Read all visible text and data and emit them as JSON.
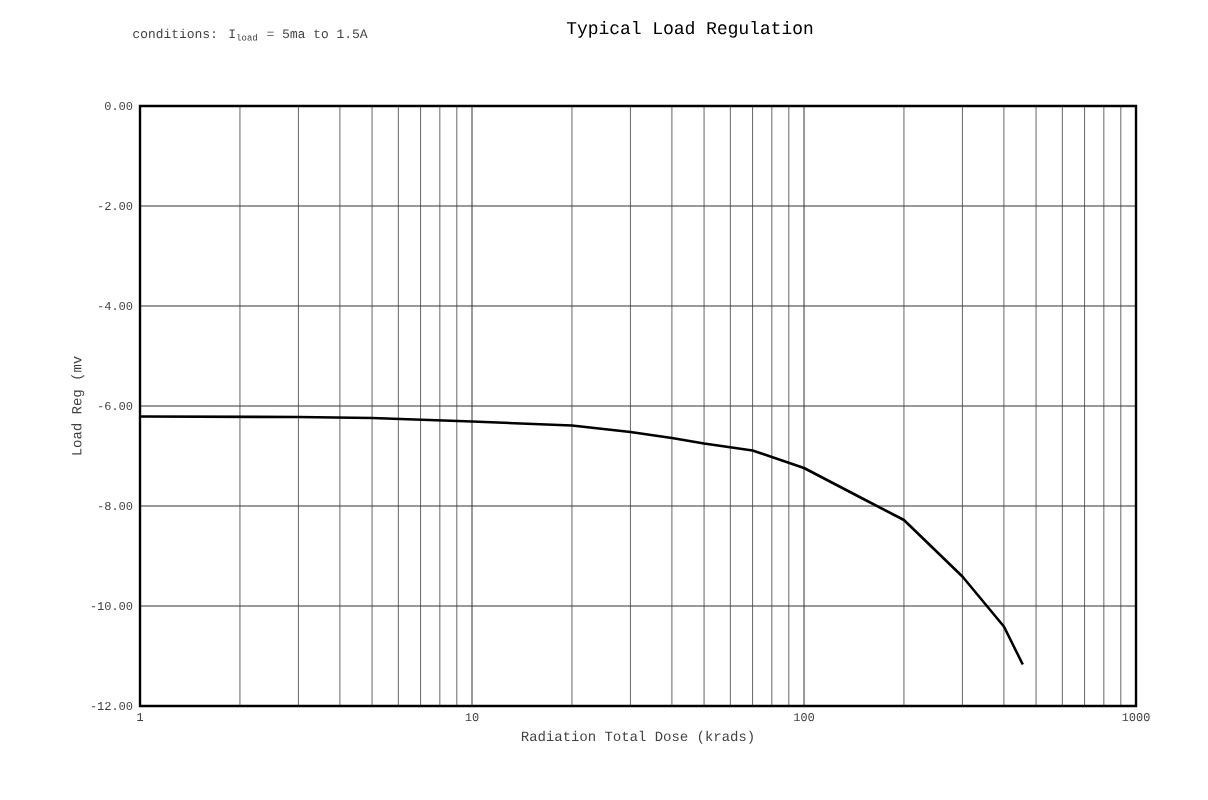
{
  "chart_data": {
    "type": "line",
    "title": "Typical Load Regulation",
    "subtitle": "conditions: I$_{load}$ = 5ma to 1.5A",
    "xlabel": "Radiation Total Dose (krads)",
    "ylabel": "Load Reg (mv",
    "log": "x",
    "grid": true,
    "marker": "none",
    "line_style": "solid",
    "xlim": [
      1,
      1000
    ],
    "xticks": [
      1,
      10,
      100,
      1000
    ],
    "ylim": [
      -12,
      0
    ],
    "yticks": [
      {
        "value": 0,
        "label": "0.00"
      },
      {
        "value": -2,
        "label": "-2.00"
      },
      {
        "value": -4,
        "label": "-4.00"
      },
      {
        "value": -6,
        "label": "-6.00"
      },
      {
        "value": -8,
        "label": "-8.00"
      },
      {
        "value": -10,
        "label": "-10.00"
      },
      {
        "value": -12,
        "label": "-12.00"
      }
    ],
    "series": [
      {
        "color": "#000000",
        "x": [
          1,
          3,
          5,
          10,
          20,
          30,
          40,
          50,
          70,
          100,
          150,
          200,
          300,
          400,
          456
        ],
        "values": [
          -6.21,
          -6.22,
          -6.24,
          -6.31,
          -6.39,
          -6.52,
          -6.64,
          -6.75,
          -6.89,
          -7.24,
          -7.85,
          -8.28,
          -9.41,
          -10.41,
          -11.17
        ]
      }
    ]
  }
}
